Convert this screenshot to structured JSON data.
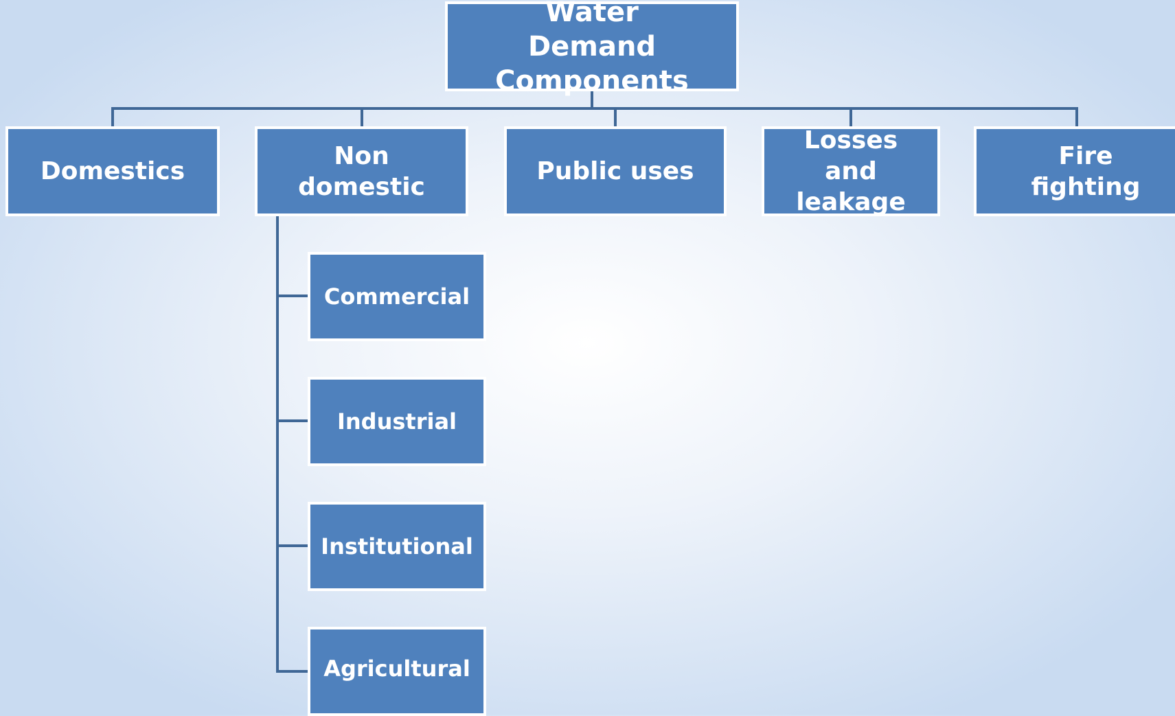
{
  "root": {
    "label": "Water Demand Components"
  },
  "nodes": [
    {
      "label": "Domestics"
    },
    {
      "label": "Non domestic",
      "children": [
        {
          "label": "Commercial"
        },
        {
          "label": "Industrial"
        },
        {
          "label": "Institutional"
        },
        {
          "label": "Agricultural"
        }
      ]
    },
    {
      "label": "Public uses"
    },
    {
      "label": "Losses and leakage"
    },
    {
      "label": "Fire fighting"
    }
  ]
}
